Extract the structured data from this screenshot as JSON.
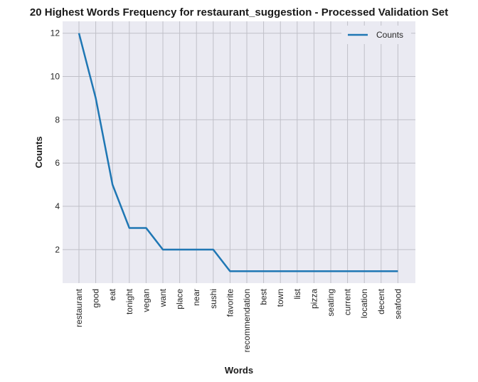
{
  "chart_data": {
    "type": "line",
    "title": "20 Highest Words Frequency for restaurant_suggestion - Processed Validation Set",
    "xlabel": "Words",
    "ylabel": "Counts",
    "categories": [
      "restaurant",
      "good",
      "eat",
      "tonight",
      "vegan",
      "want",
      "place",
      "near",
      "sushi",
      "favorite",
      "recommendation",
      "best",
      "town",
      "list",
      "pizza",
      "seating",
      "current",
      "location",
      "decent",
      "seafood"
    ],
    "series": [
      {
        "name": "Counts",
        "values": [
          12,
          9,
          5,
          3,
          3,
          2,
          2,
          2,
          2,
          1,
          1,
          1,
          1,
          1,
          1,
          1,
          1,
          1,
          1,
          1
        ]
      }
    ],
    "ylim": [
      0.45,
      12.55
    ],
    "yticks": [
      2,
      4,
      6,
      8,
      10,
      12
    ],
    "grid": true,
    "legend": "top-right",
    "colors": {
      "line": "#1f77b4",
      "plot_bg": "#eaeaf2",
      "grid": "#c0c0c8"
    }
  }
}
